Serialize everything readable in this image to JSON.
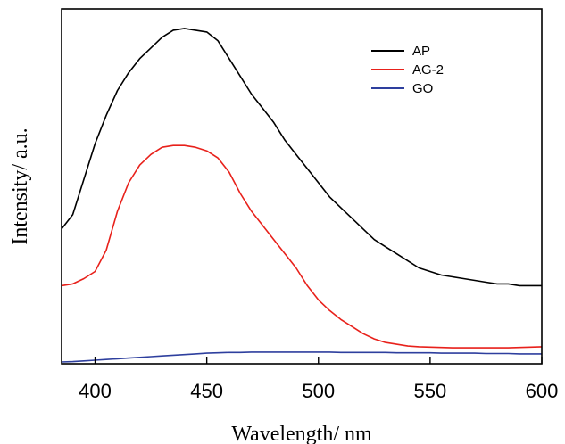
{
  "chart_data": {
    "type": "line",
    "title": "",
    "xlabel": "Wavelength/ nm",
    "ylabel": "Intensity/ a.u.",
    "xlim": [
      385,
      600
    ],
    "ylim": [
      0,
      100
    ],
    "xticks": [
      400,
      450,
      500,
      550,
      600
    ],
    "xtick_labels": [
      "400",
      "450",
      "500",
      "550",
      "600"
    ],
    "grid": false,
    "legend_position": "top-right",
    "series": [
      {
        "name": "AP",
        "color": "#000000",
        "x": [
          385,
          390,
          395,
          400,
          405,
          410,
          415,
          420,
          425,
          430,
          435,
          440,
          445,
          450,
          455,
          460,
          465,
          470,
          475,
          480,
          485,
          490,
          495,
          500,
          505,
          510,
          515,
          520,
          525,
          530,
          535,
          540,
          545,
          550,
          555,
          560,
          565,
          570,
          575,
          580,
          585,
          590,
          595,
          600
        ],
        "y": [
          38,
          42,
          52,
          62,
          70,
          77,
          82,
          86,
          89,
          92,
          94,
          94.5,
          94,
          93.5,
          91,
          86,
          81,
          76,
          72,
          68,
          63,
          59,
          55,
          51,
          47,
          44,
          41,
          38,
          35,
          33,
          31,
          29,
          27,
          26,
          25,
          24.5,
          24,
          23.5,
          23,
          22.5,
          22.5,
          22,
          22,
          22
        ]
      },
      {
        "name": "AG-2",
        "color": "#e8211b",
        "x": [
          385,
          390,
          395,
          400,
          405,
          410,
          415,
          420,
          425,
          430,
          435,
          440,
          445,
          450,
          455,
          460,
          465,
          470,
          475,
          480,
          485,
          490,
          495,
          500,
          505,
          510,
          515,
          520,
          525,
          530,
          535,
          540,
          545,
          550,
          555,
          560,
          565,
          570,
          575,
          580,
          585,
          590,
          595,
          600
        ],
        "y": [
          22,
          22.5,
          24,
          26,
          32,
          43,
          51,
          56,
          59,
          61,
          61.5,
          61.5,
          61,
          60,
          58,
          54,
          48,
          43,
          39,
          35,
          31,
          27,
          22,
          18,
          15,
          12.5,
          10.5,
          8.5,
          7,
          6,
          5.5,
          5,
          4.8,
          4.7,
          4.6,
          4.5,
          4.5,
          4.5,
          4.5,
          4.5,
          4.5,
          4.6,
          4.7,
          4.8
        ]
      },
      {
        "name": "GO",
        "color": "#2e3f9e",
        "x": [
          385,
          390,
          395,
          400,
          405,
          410,
          415,
          420,
          425,
          430,
          435,
          440,
          445,
          450,
          455,
          460,
          465,
          470,
          475,
          480,
          485,
          490,
          495,
          500,
          505,
          510,
          515,
          520,
          525,
          530,
          535,
          540,
          545,
          550,
          555,
          560,
          565,
          570,
          575,
          580,
          585,
          590,
          595,
          600
        ],
        "y": [
          0.5,
          0.6,
          0.8,
          1.0,
          1.2,
          1.4,
          1.6,
          1.8,
          2.0,
          2.2,
          2.4,
          2.6,
          2.8,
          3.0,
          3.1,
          3.2,
          3.2,
          3.3,
          3.3,
          3.3,
          3.3,
          3.3,
          3.3,
          3.3,
          3.3,
          3.2,
          3.2,
          3.2,
          3.2,
          3.2,
          3.1,
          3.1,
          3.1,
          3.1,
          3.0,
          3.0,
          3.0,
          3.0,
          2.9,
          2.9,
          2.9,
          2.8,
          2.8,
          2.8
        ]
      }
    ]
  }
}
